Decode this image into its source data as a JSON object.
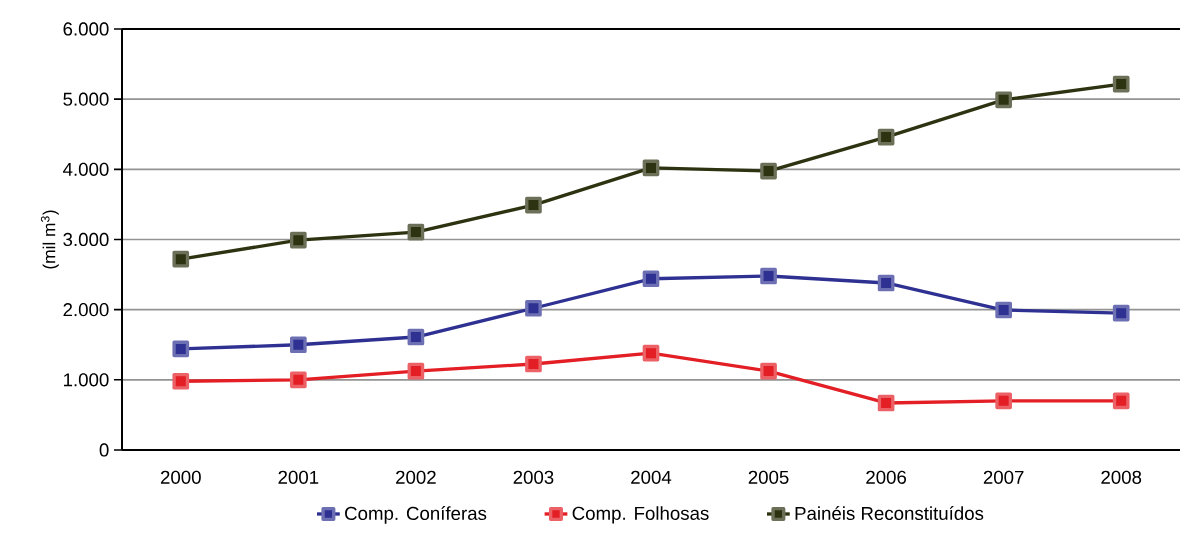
{
  "chart_data": {
    "type": "line",
    "ylabel": "(mil m$^{3}$)",
    "categories": [
      "2000",
      "2001",
      "2002",
      "2003",
      "2004",
      "2005",
      "2006",
      "2007",
      "2008"
    ],
    "series": [
      {
        "name": "Comp. Coníferas",
        "color": "#2e3192",
        "values": [
          1440,
          1500,
          1610,
          2020,
          2440,
          2480,
          2380,
          1995,
          1950
        ]
      },
      {
        "name": "Comp. Folhosas",
        "color": "#e31e24",
        "values": [
          980,
          1000,
          1125,
          1225,
          1380,
          1125,
          670,
          700,
          700
        ]
      },
      {
        "name": "Painéis Reconstituídos",
        "color": "#2d3310",
        "values": [
          2720,
          2990,
          3105,
          3490,
          4020,
          3975,
          4460,
          4990,
          5215
        ]
      }
    ],
    "ylim": [
      0,
      6000
    ],
    "yticks": [
      0,
      {
        "value": 1000,
        "label": "1.000"
      },
      {
        "value": 2000,
        "label": "2.000"
      },
      {
        "value": 3000,
        "label": "3.000"
      },
      {
        "value": 4000,
        "label": "4.000"
      },
      {
        "value": 5000,
        "label": "5.000"
      },
      {
        "value": 6000,
        "label": "6.000"
      }
    ],
    "grid": "y",
    "legend": "bottom",
    "marker": "square",
    "line_style": "solid"
  }
}
